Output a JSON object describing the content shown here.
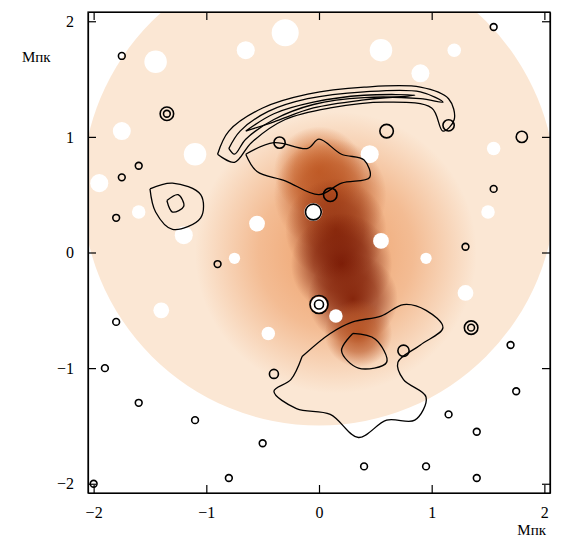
{
  "chart_data": {
    "type": "contour",
    "x_label": "Мпк",
    "y_label": "Мпк",
    "xlim": [
      -2.05,
      2.05
    ],
    "ylim": [
      -2.08,
      2.08
    ],
    "xticks": [
      {
        "value": -2,
        "label": "−2"
      },
      {
        "value": -1,
        "label": "−1"
      },
      0,
      1,
      2
    ],
    "yticks": [
      {
        "value": -2,
        "label": "−2"
      },
      {
        "value": -1,
        "label": "−1"
      },
      0,
      1,
      2
    ],
    "colormap": [
      "#fbe7d4",
      "#e8803a",
      "#6e1000"
    ],
    "field": {
      "x": 0.0,
      "y": 0.55,
      "r": 2.1
    },
    "xray_blobs": [
      {
        "x": 0.15,
        "y": 0.0,
        "r": 1.25,
        "level": 0.35
      },
      {
        "x": 0.0,
        "y": 0.7,
        "r": 0.4,
        "level": 0.6
      },
      {
        "x": 0.1,
        "y": 0.5,
        "r": 0.5,
        "level": 0.7
      },
      {
        "x": 0.15,
        "y": 0.2,
        "r": 0.45,
        "level": 0.85
      },
      {
        "x": 0.2,
        "y": -0.1,
        "r": 0.45,
        "level": 0.95
      },
      {
        "x": 0.3,
        "y": -0.4,
        "r": 0.4,
        "level": 0.9
      },
      {
        "x": 0.35,
        "y": -0.7,
        "r": 0.3,
        "level": 0.7
      }
    ],
    "masks": [
      {
        "x": -0.3,
        "y": 1.9,
        "r": 0.12
      },
      {
        "x": -0.65,
        "y": 1.75,
        "r": 0.08
      },
      {
        "x": 0.55,
        "y": 1.75,
        "r": 0.1
      },
      {
        "x": 1.2,
        "y": 1.75,
        "r": 0.06
      },
      {
        "x": -1.45,
        "y": 1.65,
        "r": 0.1
      },
      {
        "x": 0.9,
        "y": 1.55,
        "r": 0.08
      },
      {
        "x": -1.75,
        "y": 1.05,
        "r": 0.08
      },
      {
        "x": -1.1,
        "y": 0.85,
        "r": 0.1
      },
      {
        "x": 0.45,
        "y": 0.85,
        "r": 0.08
      },
      {
        "x": 1.55,
        "y": 0.9,
        "r": 0.06
      },
      {
        "x": -1.95,
        "y": 0.6,
        "r": 0.08
      },
      {
        "x": -0.55,
        "y": 0.25,
        "r": 0.07
      },
      {
        "x": -1.2,
        "y": 0.15,
        "r": 0.08
      },
      {
        "x": 0.55,
        "y": 0.1,
        "r": 0.07
      },
      {
        "x": -0.05,
        "y": 0.35,
        "r": 0.08
      },
      {
        "x": 0.0,
        "y": -0.45,
        "r": 0.07
      },
      {
        "x": 0.15,
        "y": -0.55,
        "r": 0.06
      },
      {
        "x": -0.45,
        "y": -0.7,
        "r": 0.06
      },
      {
        "x": -1.4,
        "y": -0.5,
        "r": 0.07
      },
      {
        "x": 1.3,
        "y": -0.35,
        "r": 0.07
      },
      {
        "x": 1.5,
        "y": 0.35,
        "r": 0.06
      },
      {
        "x": -0.75,
        "y": -0.05,
        "r": 0.05
      },
      {
        "x": 0.95,
        "y": -0.05,
        "r": 0.05
      },
      {
        "x": -1.6,
        "y": 0.35,
        "r": 0.06
      }
    ],
    "contours": [
      [
        [
          -0.9,
          0.85
        ],
        [
          -0.8,
          1.05
        ],
        [
          -0.5,
          1.25
        ],
        [
          -0.1,
          1.37
        ],
        [
          0.4,
          1.43
        ],
        [
          0.9,
          1.43
        ],
        [
          1.15,
          1.33
        ],
        [
          1.2,
          1.15
        ],
        [
          1.1,
          1.05
        ],
        [
          1.0,
          1.25
        ],
        [
          0.6,
          1.3
        ],
        [
          0.1,
          1.25
        ],
        [
          -0.3,
          1.15
        ],
        [
          -0.6,
          0.95
        ],
        [
          -0.75,
          0.78
        ],
        [
          -0.9,
          0.85
        ]
      ],
      [
        [
          -0.8,
          0.9
        ],
        [
          -0.7,
          1.05
        ],
        [
          -0.45,
          1.22
        ],
        [
          -0.1,
          1.33
        ],
        [
          0.4,
          1.39
        ],
        [
          0.9,
          1.39
        ],
        [
          1.1,
          1.3
        ],
        [
          0.9,
          1.33
        ],
        [
          0.4,
          1.34
        ],
        [
          -0.05,
          1.28
        ],
        [
          -0.4,
          1.15
        ],
        [
          -0.65,
          0.98
        ],
        [
          -0.75,
          0.85
        ],
        [
          -0.8,
          0.9
        ]
      ],
      [
        [
          -0.65,
          1.05
        ],
        [
          -0.4,
          1.2
        ],
        [
          -0.05,
          1.3
        ],
        [
          0.4,
          1.36
        ],
        [
          0.85,
          1.36
        ],
        [
          0.4,
          1.32
        ],
        [
          -0.05,
          1.25
        ],
        [
          -0.4,
          1.13
        ],
        [
          -0.65,
          1.05
        ]
      ],
      [
        [
          -0.65,
          0.85
        ],
        [
          -0.4,
          0.95
        ],
        [
          -0.1,
          0.9
        ],
        [
          0.0,
          0.98
        ],
        [
          0.2,
          0.85
        ],
        [
          0.4,
          0.8
        ],
        [
          0.45,
          0.65
        ],
        [
          0.2,
          0.6
        ],
        [
          0.0,
          0.5
        ],
        [
          -0.3,
          0.62
        ],
        [
          -0.55,
          0.7
        ],
        [
          -0.65,
          0.85
        ]
      ],
      [
        [
          -1.5,
          0.55
        ],
        [
          -1.3,
          0.6
        ],
        [
          -1.05,
          0.5
        ],
        [
          -1.05,
          0.3
        ],
        [
          -1.3,
          0.2
        ],
        [
          -1.45,
          0.35
        ],
        [
          -1.5,
          0.55
        ]
      ],
      [
        [
          -1.35,
          0.45
        ],
        [
          -1.25,
          0.5
        ],
        [
          -1.2,
          0.4
        ],
        [
          -1.3,
          0.35
        ],
        [
          -1.35,
          0.45
        ]
      ],
      [
        [
          -0.15,
          -0.9
        ],
        [
          0.1,
          -0.7
        ],
        [
          0.3,
          -0.6
        ],
        [
          0.55,
          -0.55
        ],
        [
          0.75,
          -0.45
        ],
        [
          0.95,
          -0.5
        ],
        [
          1.1,
          -0.65
        ],
        [
          0.9,
          -0.8
        ],
        [
          0.7,
          -0.95
        ],
        [
          0.75,
          -1.1
        ],
        [
          0.95,
          -1.25
        ],
        [
          0.85,
          -1.45
        ],
        [
          0.6,
          -1.45
        ],
        [
          0.35,
          -1.6
        ],
        [
          0.1,
          -1.4
        ],
        [
          -0.2,
          -1.35
        ],
        [
          -0.4,
          -1.2
        ],
        [
          -0.25,
          -1.1
        ],
        [
          -0.15,
          -0.9
        ]
      ],
      [
        [
          0.3,
          -0.7
        ],
        [
          0.5,
          -0.75
        ],
        [
          0.6,
          -0.95
        ],
        [
          0.35,
          -1.0
        ],
        [
          0.2,
          -0.85
        ],
        [
          0.3,
          -0.7
        ]
      ]
    ],
    "sources": [
      {
        "x": -1.35,
        "y": 1.2,
        "r": 0.06
      },
      {
        "x": -1.35,
        "y": 1.2,
        "r": 0.03
      },
      {
        "x": -0.35,
        "y": 0.95,
        "r": 0.05
      },
      {
        "x": 0.6,
        "y": 1.05,
        "r": 0.06
      },
      {
        "x": 1.15,
        "y": 1.1,
        "r": 0.05
      },
      {
        "x": 1.8,
        "y": 1.0,
        "r": 0.05
      },
      {
        "x": -0.05,
        "y": 0.35,
        "r": 0.07
      },
      {
        "x": 0.1,
        "y": 0.5,
        "r": 0.06
      },
      {
        "x": 0.0,
        "y": -0.45,
        "r": 0.08
      },
      {
        "x": 0.0,
        "y": -0.45,
        "r": 0.04
      },
      {
        "x": 0.75,
        "y": -0.85,
        "r": 0.05
      },
      {
        "x": 1.35,
        "y": -0.65,
        "r": 0.06
      },
      {
        "x": 1.35,
        "y": -0.65,
        "r": 0.03
      },
      {
        "x": -0.4,
        "y": -1.05,
        "r": 0.04
      },
      {
        "x": -1.8,
        "y": -0.6,
        "r": 0.03
      },
      {
        "x": -1.9,
        "y": -1.0,
        "r": 0.03
      },
      {
        "x": -1.6,
        "y": -1.3,
        "r": 0.03
      },
      {
        "x": -0.5,
        "y": -1.65,
        "r": 0.03
      },
      {
        "x": -1.1,
        "y": -1.45,
        "r": 0.03
      },
      {
        "x": 1.15,
        "y": -1.4,
        "r": 0.03
      },
      {
        "x": 1.4,
        "y": -1.55,
        "r": 0.03
      },
      {
        "x": 1.4,
        "y": -1.95,
        "r": 0.03
      },
      {
        "x": 0.95,
        "y": -1.85,
        "r": 0.03
      },
      {
        "x": 1.7,
        "y": -0.8,
        "r": 0.03
      },
      {
        "x": -0.8,
        "y": -1.95,
        "r": 0.03
      },
      {
        "x": 0.4,
        "y": -1.85,
        "r": 0.03
      },
      {
        "x": 1.75,
        "y": -1.2,
        "r": 0.03
      },
      {
        "x": -1.75,
        "y": 0.65,
        "r": 0.03
      },
      {
        "x": -1.6,
        "y": 0.75,
        "r": 0.03
      },
      {
        "x": -1.8,
        "y": 0.3,
        "r": 0.03
      },
      {
        "x": -2.0,
        "y": -2.0,
        "r": 0.03
      },
      {
        "x": 1.3,
        "y": 0.05,
        "r": 0.03
      },
      {
        "x": 1.55,
        "y": 0.55,
        "r": 0.03
      },
      {
        "x": -0.9,
        "y": -0.1,
        "r": 0.03
      },
      {
        "x": 1.55,
        "y": 1.95,
        "r": 0.03
      },
      {
        "x": -1.75,
        "y": 1.7,
        "r": 0.03
      }
    ]
  }
}
